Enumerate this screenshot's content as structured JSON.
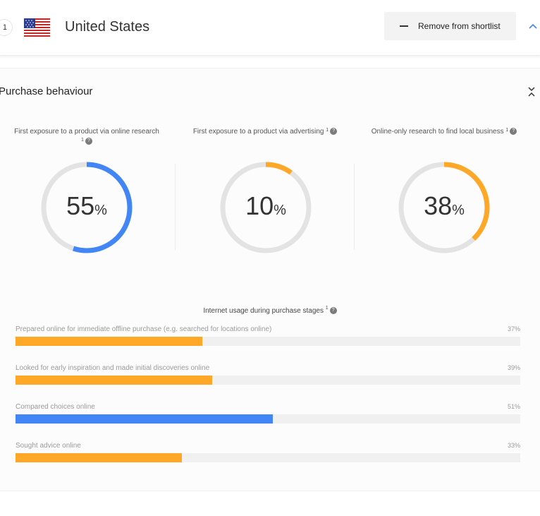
{
  "header": {
    "rank": "1",
    "country": "United States",
    "remove_label": "Remove from shortlist"
  },
  "section": {
    "title": "Purchase behaviour"
  },
  "metrics": [
    {
      "title_line1": "First exposure to a product via online research",
      "sup": "1",
      "value": "55",
      "unit": "%",
      "fraction": 0.55,
      "color": "#4285f4"
    },
    {
      "title_line1": "First exposure to a product via advertising",
      "sup": "1",
      "value": "10",
      "unit": "%",
      "fraction": 0.1,
      "color": "#ffa726"
    },
    {
      "title_line1": "Online-only research to find local business",
      "sup": "1",
      "value": "38",
      "unit": "%",
      "fraction": 0.38,
      "color": "#ffa726"
    }
  ],
  "usage": {
    "title": "Internet usage during purchase stages",
    "sup": "1",
    "items": [
      {
        "label": "Prepared online for immediate offline purchase (e.g. searched for locations online)",
        "value": "37%",
        "fraction": 0.37,
        "color": "#ffa726"
      },
      {
        "label": "Looked for early inspiration and made initial discoveries online",
        "value": "39%",
        "fraction": 0.39,
        "color": "#ffa726"
      },
      {
        "label": "Compared choices online",
        "value": "51%",
        "fraction": 0.51,
        "color": "#4285f4"
      },
      {
        "label": "Sought advice online",
        "value": "33%",
        "fraction": 0.33,
        "color": "#ffa726"
      }
    ]
  },
  "colors": {
    "blue": "#4285f4",
    "orange": "#ffa726",
    "track": "#e3e3e3"
  },
  "icons": {
    "flag": "us-flag-icon",
    "remove": "minus-icon",
    "collapse": "chevron-up-icon",
    "expand": "collapse-arrows-icon",
    "help": "question-mark-icon"
  }
}
